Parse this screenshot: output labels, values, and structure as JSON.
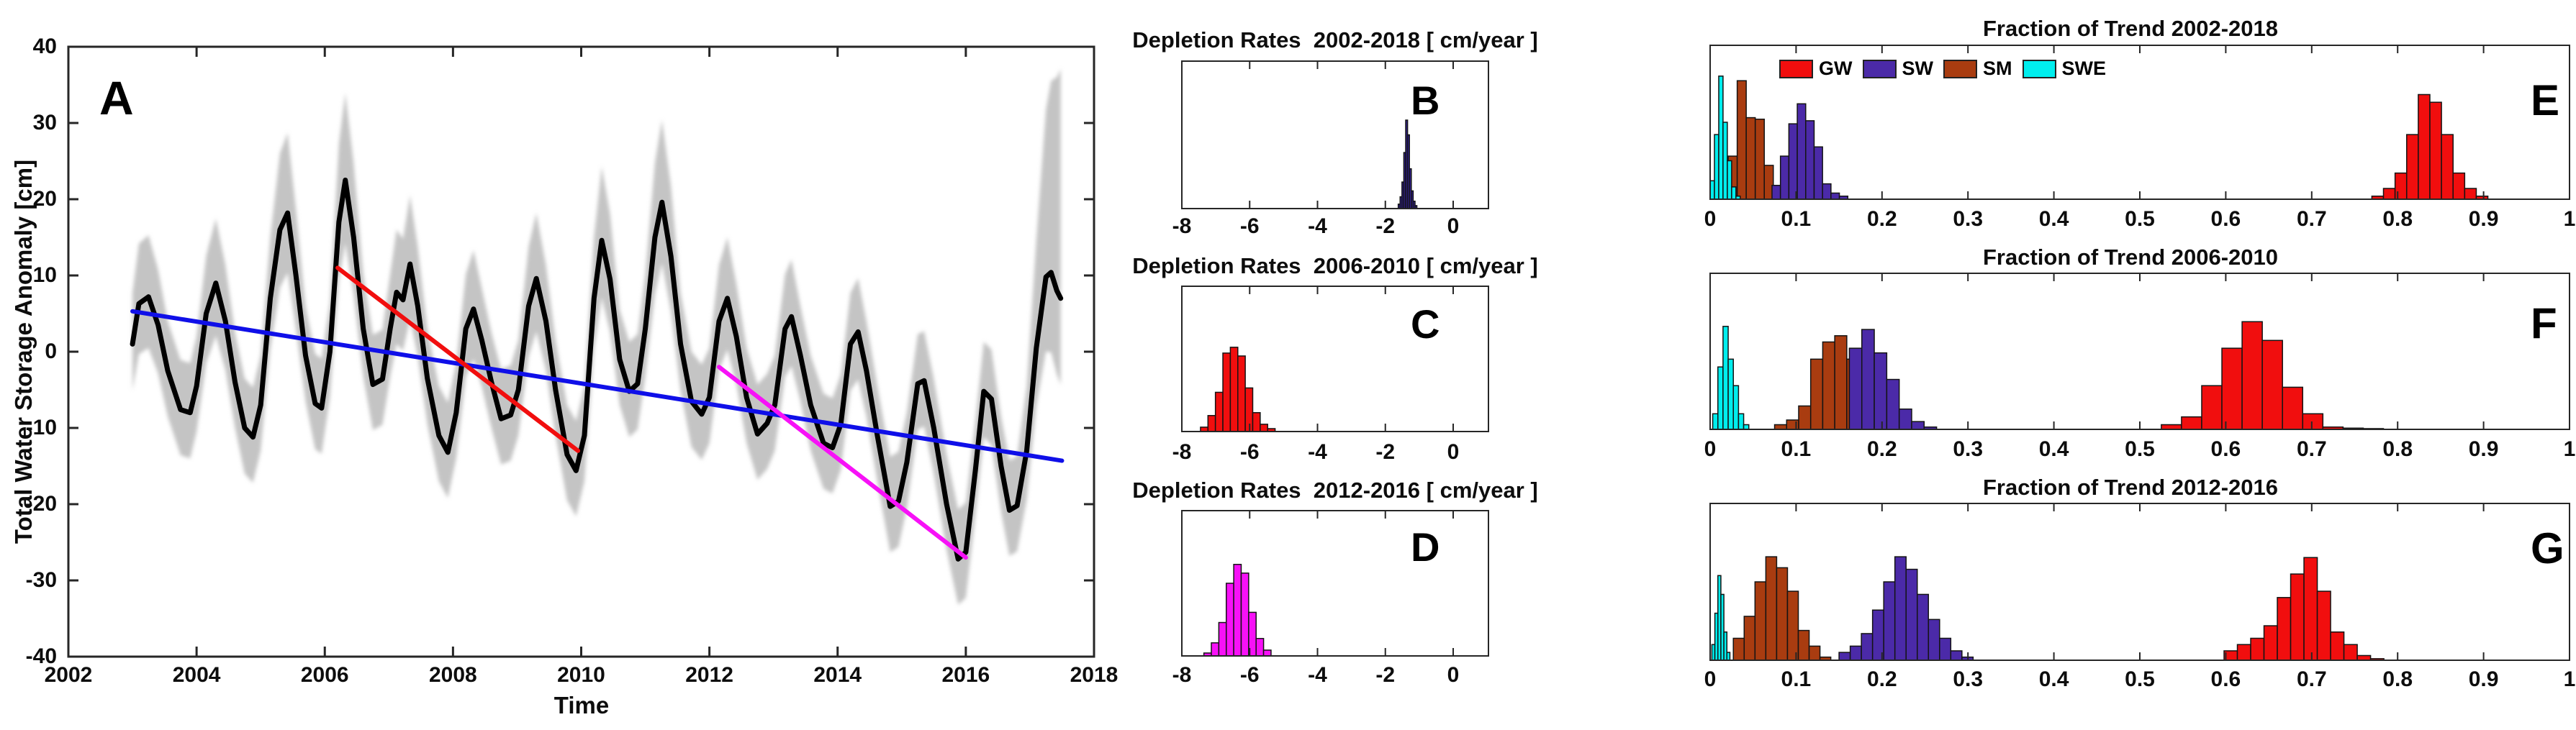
{
  "figure_letters": {
    "a": "A",
    "b": "B",
    "c": "C",
    "d": "D",
    "e": "E",
    "f": "F",
    "g": "G"
  },
  "colors": {
    "gw_red": "#f10e0e",
    "sw_purple": "#4b2aa8",
    "sm_brown": "#a93c10",
    "swe_cyan": "#00eeee",
    "tws_trend_indigo": "#33209a",
    "magenta": "#f711f7",
    "blue": "#0f0fe8",
    "black": "#000000",
    "gray_band": "#c4c4c4"
  },
  "chart_data": [
    {
      "id": "A",
      "type": "line",
      "letter": "A",
      "title": "",
      "xlabel": "Time",
      "ylabel": "Total Water Storage Anomaly [cm]",
      "xlim": [
        2002,
        2018
      ],
      "ylim": [
        -40,
        40
      ],
      "x_ticks": [
        "2002",
        "2004",
        "2006",
        "2008",
        "2010",
        "2012",
        "2014",
        "2016",
        "2018"
      ],
      "x_tick_vals": [
        2002,
        2004,
        2006,
        2008,
        2010,
        2012,
        2014,
        2016,
        2018
      ],
      "y_ticks": [
        "-40",
        "-30",
        "-20",
        "-10",
        "0",
        "10",
        "20",
        "30",
        "40"
      ],
      "y_tick_vals": [
        -40,
        -30,
        -20,
        -10,
        0,
        10,
        20,
        30,
        40
      ],
      "series": [
        {
          "name": "tws-uncertainty-band",
          "type": "band",
          "color": "#c4c4c4",
          "band_rule": {
            "up_base": 6.5,
            "up_peak": 0.22,
            "lo_base": 6.0,
            "lo_peak": 0.1,
            "end_year": 2016.9,
            "end_up": 38,
            "end_lo": 8
          }
        },
        {
          "name": "tws-anomaly",
          "type": "curve",
          "color": "#000000",
          "width": 7,
          "x": [
            2003.0,
            2003.1,
            2003.25,
            2003.4,
            2003.55,
            2003.75,
            2003.9,
            2004.0,
            2004.15,
            2004.3,
            2004.45,
            2004.6,
            2004.75,
            2004.88,
            2005.0,
            2005.15,
            2005.3,
            2005.42,
            2005.55,
            2005.7,
            2005.85,
            2005.95,
            2006.08,
            2006.22,
            2006.32,
            2006.45,
            2006.6,
            2006.75,
            2006.9,
            2007.02,
            2007.12,
            2007.22,
            2007.33,
            2007.45,
            2007.6,
            2007.78,
            2007.92,
            2008.05,
            2008.2,
            2008.32,
            2008.45,
            2008.6,
            2008.75,
            2008.9,
            2009.02,
            2009.18,
            2009.3,
            2009.45,
            2009.6,
            2009.78,
            2009.92,
            2010.05,
            2010.2,
            2010.32,
            2010.45,
            2010.6,
            2010.75,
            2010.88,
            2011.0,
            2011.15,
            2011.26,
            2011.4,
            2011.55,
            2011.72,
            2011.88,
            2012.0,
            2012.15,
            2012.28,
            2012.42,
            2012.58,
            2012.75,
            2012.9,
            2013.02,
            2013.18,
            2013.28,
            2013.42,
            2013.58,
            2013.78,
            2013.92,
            2014.05,
            2014.2,
            2014.32,
            2014.45,
            2014.62,
            2014.82,
            2014.95,
            2015.08,
            2015.25,
            2015.35,
            2015.5,
            2015.7,
            2015.88,
            2016.0,
            2016.15,
            2016.28,
            2016.4,
            2016.55,
            2016.68,
            2016.8,
            2016.95,
            2017.1,
            2017.25,
            2017.33,
            2017.42,
            2017.48
          ],
          "y": [
            1.0,
            6.3,
            7.2,
            3.5,
            -2.5,
            -7.6,
            -8.0,
            -4.5,
            5.0,
            9.0,
            4.0,
            -4.0,
            -10.0,
            -11.2,
            -7.0,
            7.0,
            16.0,
            18.2,
            10.0,
            -0.5,
            -6.8,
            -7.4,
            0.0,
            17.0,
            22.5,
            15.0,
            3.0,
            -4.3,
            -3.6,
            3.0,
            7.8,
            6.8,
            11.5,
            6.0,
            -3.5,
            -11.0,
            -13.2,
            -8.0,
            3.0,
            5.6,
            1.5,
            -4.0,
            -8.8,
            -8.3,
            -5.0,
            6.0,
            9.6,
            4.0,
            -5.0,
            -13.5,
            -15.6,
            -11.0,
            7.0,
            14.6,
            9.5,
            -1.0,
            -5.2,
            -4.2,
            3.0,
            15.0,
            19.6,
            12.5,
            1.0,
            -6.5,
            -8.2,
            -6.0,
            4.0,
            7.0,
            2.0,
            -6.0,
            -10.8,
            -9.4,
            -7.0,
            3.0,
            4.6,
            -0.5,
            -7.0,
            -12.0,
            -12.6,
            -9.5,
            1.0,
            2.6,
            -2.5,
            -11.0,
            -20.3,
            -19.6,
            -14.5,
            -4.2,
            -3.8,
            -10.0,
            -20.0,
            -27.2,
            -26.3,
            -15.5,
            -5.2,
            -6.2,
            -15.0,
            -20.8,
            -20.2,
            -13.0,
            0.5,
            9.8,
            10.4,
            8.0,
            7.0
          ]
        },
        {
          "name": "trend-2002-2018",
          "type": "trend",
          "color": "#0f0fe8",
          "width": 6,
          "x": [
            2003.0,
            2017.5
          ],
          "y": [
            5.3,
            -14.3
          ]
        },
        {
          "name": "trend-2006-2010",
          "type": "trend",
          "color": "#f10e0e",
          "width": 6,
          "x": [
            2006.2,
            2009.95
          ],
          "y": [
            11.0,
            -13.0
          ]
        },
        {
          "name": "trend-2012-2016",
          "type": "trend",
          "color": "#f711f7",
          "width": 6,
          "x": [
            2012.15,
            2016.0
          ],
          "y": [
            -2.0,
            -27.0
          ]
        }
      ]
    },
    {
      "id": "B",
      "type": "bar",
      "letter": "B",
      "title": "Depletion Rates  2002-2018 [ cm/year ]",
      "xlim": [
        -8,
        1.04
      ],
      "ylim": [
        0,
        1
      ],
      "x_ticks": [
        "-8",
        "-6",
        "-4",
        "-2",
        "0"
      ],
      "x_tick_vals": [
        -8,
        -6,
        -4,
        -2,
        0
      ],
      "series": [
        {
          "name": "tws-trend-2002-2018",
          "color": "#33209a",
          "bin_start": -1.62,
          "bin_width": 0.055,
          "heights": [
            0.03,
            0.08,
            0.18,
            0.38,
            0.6,
            0.5,
            0.27,
            0.12,
            0.05,
            0.02
          ]
        }
      ]
    },
    {
      "id": "C",
      "type": "bar",
      "letter": "C",
      "title": "Depletion Rates  2006-2010 [ cm/year ]",
      "xlim": [
        -8,
        1.04
      ],
      "ylim": [
        0,
        1
      ],
      "x_ticks": [
        "-8",
        "-6",
        "-4",
        "-2",
        "0"
      ],
      "x_tick_vals": [
        -8,
        -6,
        -4,
        -2,
        0
      ],
      "series": [
        {
          "name": "tws-trend-2006-2010",
          "color": "#f10e0e",
          "bin_start": -7.45,
          "bin_width": 0.22,
          "heights": [
            0.03,
            0.11,
            0.27,
            0.54,
            0.58,
            0.52,
            0.3,
            0.13,
            0.05,
            0.02
          ]
        }
      ]
    },
    {
      "id": "D",
      "type": "bar",
      "letter": "D",
      "title": "Depletion Rates  2012-2016 [ cm/year ]",
      "xlim": [
        -8,
        1.04
      ],
      "ylim": [
        0,
        1
      ],
      "x_ticks": [
        "-8",
        "-6",
        "-4",
        "-2",
        "0"
      ],
      "x_tick_vals": [
        -8,
        -6,
        -4,
        -2,
        0
      ],
      "series": [
        {
          "name": "tws-trend-2012-2016",
          "color": "#f711f7",
          "bin_start": -7.35,
          "bin_width": 0.22,
          "heights": [
            0.02,
            0.09,
            0.23,
            0.5,
            0.63,
            0.57,
            0.3,
            0.12,
            0.04
          ]
        }
      ]
    },
    {
      "id": "E",
      "type": "bar",
      "letter": "E",
      "title": "Fraction of Trend 2002-2018",
      "xlim": [
        0,
        1
      ],
      "ylim": [
        0,
        1
      ],
      "x_ticks": [
        "0",
        "0.1",
        "0.2",
        "0.3",
        "0.4",
        "0.5",
        "0.6",
        "0.7",
        "0.8",
        "0.9",
        "1"
      ],
      "x_tick_vals": [
        0,
        0.1,
        0.2,
        0.3,
        0.4,
        0.5,
        0.6,
        0.7,
        0.8,
        0.9,
        1
      ],
      "legend": [
        {
          "label": "GW",
          "color": "#f10e0e"
        },
        {
          "label": "SW",
          "color": "#4b2aa8"
        },
        {
          "label": "SM",
          "color": "#a93c10"
        },
        {
          "label": "SWE",
          "color": "#00eeee"
        }
      ],
      "series": [
        {
          "name": "SM",
          "color": "#a93c10",
          "bin_start": 0.021,
          "bin_width": 0.0105,
          "heights": [
            0.28,
            0.77,
            0.53,
            0.52,
            0.22,
            0.09,
            0.03
          ]
        },
        {
          "name": "SW",
          "color": "#4b2aa8",
          "bin_start": 0.072,
          "bin_width": 0.0098,
          "heights": [
            0.09,
            0.28,
            0.49,
            0.62,
            0.51,
            0.34,
            0.1,
            0.04,
            0.02
          ]
        },
        {
          "name": "SWE",
          "color": "#00eeee",
          "bin_start": 0.0,
          "bin_width": 0.005,
          "heights": [
            0.12,
            0.42,
            0.8,
            0.5,
            0.25,
            0.08,
            0.02
          ]
        },
        {
          "name": "GW",
          "color": "#f10e0e",
          "bin_start": 0.77,
          "bin_width": 0.0135,
          "heights": [
            0.02,
            0.07,
            0.17,
            0.42,
            0.68,
            0.63,
            0.42,
            0.17,
            0.07,
            0.02
          ]
        }
      ]
    },
    {
      "id": "F",
      "type": "bar",
      "letter": "F",
      "title": "Fraction of Trend 2006-2010",
      "xlim": [
        0,
        1
      ],
      "ylim": [
        0,
        1
      ],
      "x_ticks": [
        "0",
        "0.1",
        "0.2",
        "0.3",
        "0.4",
        "0.5",
        "0.6",
        "0.7",
        "0.8",
        "0.9",
        "1"
      ],
      "x_tick_vals": [
        0,
        0.1,
        0.2,
        0.3,
        0.4,
        0.5,
        0.6,
        0.7,
        0.8,
        0.9,
        1
      ],
      "series": [
        {
          "name": "SM",
          "color": "#a93c10",
          "bin_start": 0.075,
          "bin_width": 0.014,
          "heights": [
            0.03,
            0.06,
            0.15,
            0.45,
            0.56,
            0.6,
            0.45,
            0.2,
            0.05,
            0.02
          ]
        },
        {
          "name": "SW",
          "color": "#4b2aa8",
          "bin_start": 0.162,
          "bin_width": 0.0145,
          "heights": [
            0.52,
            0.64,
            0.49,
            0.32,
            0.13,
            0.05,
            0.015
          ]
        },
        {
          "name": "SWE",
          "color": "#00eeee",
          "bin_start": 0.003,
          "bin_width": 0.006,
          "heights": [
            0.1,
            0.4,
            0.66,
            0.45,
            0.28,
            0.1,
            0.03
          ]
        },
        {
          "name": "GW",
          "color": "#f10e0e",
          "bin_start": 0.525,
          "bin_width": 0.0235,
          "heights": [
            0.03,
            0.08,
            0.28,
            0.52,
            0.69,
            0.57,
            0.27,
            0.1,
            0.015,
            0.008,
            0.005
          ]
        }
      ]
    },
    {
      "id": "G",
      "type": "bar",
      "letter": "G",
      "title": "Fraction of Trend 2012-2016",
      "xlim": [
        0,
        1
      ],
      "ylim": [
        0,
        1
      ],
      "x_ticks": [
        "0",
        "0.1",
        "0.2",
        "0.3",
        "0.4",
        "0.5",
        "0.6",
        "0.7",
        "0.8",
        "0.9",
        "1"
      ],
      "x_tick_vals": [
        0,
        0.1,
        0.2,
        0.3,
        0.4,
        0.5,
        0.6,
        0.7,
        0.8,
        0.9,
        1
      ],
      "series": [
        {
          "name": "SM",
          "color": "#a93c10",
          "bin_start": 0.027,
          "bin_width": 0.0126,
          "heights": [
            0.14,
            0.28,
            0.5,
            0.66,
            0.59,
            0.44,
            0.19,
            0.09,
            0.02
          ]
        },
        {
          "name": "SW",
          "color": "#4b2aa8",
          "bin_start": 0.15,
          "bin_width": 0.013,
          "heights": [
            0.05,
            0.09,
            0.17,
            0.32,
            0.5,
            0.66,
            0.58,
            0.42,
            0.26,
            0.14,
            0.06,
            0.02
          ]
        },
        {
          "name": "SWE",
          "color": "#00eeee",
          "bin_start": 0.002,
          "bin_width": 0.0035,
          "heights": [
            0.1,
            0.3,
            0.54,
            0.42,
            0.18,
            0.05
          ]
        },
        {
          "name": "GW",
          "color": "#f10e0e",
          "bin_start": 0.598,
          "bin_width": 0.0155,
          "heights": [
            0.06,
            0.1,
            0.14,
            0.22,
            0.4,
            0.55,
            0.655,
            0.44,
            0.18,
            0.1,
            0.03,
            0.01
          ]
        }
      ]
    }
  ]
}
